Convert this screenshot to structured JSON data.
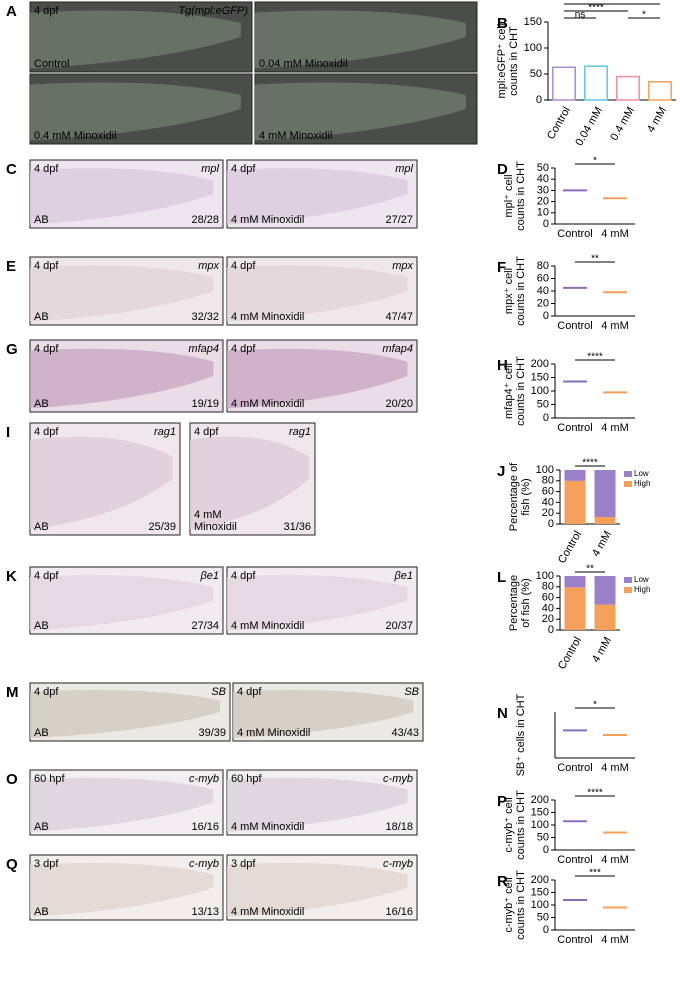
{
  "image_panels": [
    {
      "letter": "A",
      "images": [
        {
          "tl": "4 dpf",
          "tr": "Tg(mpl:eGFP)",
          "bl": "Control"
        },
        {
          "bl": "0.04 mM Minoxidil"
        },
        {
          "bl": "0.4 mM Minoxidil"
        },
        {
          "bl": "4 mM Minoxidil"
        }
      ]
    },
    {
      "letter": "C",
      "images": [
        {
          "tl": "4 dpf",
          "tr": "mpl",
          "bl": "AB",
          "br": "28/28"
        },
        {
          "tl": "4 dpf",
          "tr": "mpl",
          "bl": "4 mM Minoxidil",
          "br": "27/27"
        }
      ]
    },
    {
      "letter": "E",
      "images": [
        {
          "tl": "4 dpf",
          "tr": "mpx",
          "bl": "AB",
          "br": "32/32"
        },
        {
          "tl": "4 dpf",
          "tr": "mpx",
          "bl": "4 mM Minoxidil",
          "br": "47/47"
        }
      ]
    },
    {
      "letter": "G",
      "images": [
        {
          "tl": "4 dpf",
          "tr": "mfap4",
          "bl": "AB",
          "br": "19/19"
        },
        {
          "tl": "4 dpf",
          "tr": "mfap4",
          "bl": "4 mM Minoxidil",
          "br": "20/20"
        }
      ]
    },
    {
      "letter": "I",
      "images": [
        {
          "tl": "4 dpf",
          "tr": "rag1",
          "bl": "AB",
          "br": "25/39"
        },
        {
          "tl": "4 dpf",
          "tr": "rag1",
          "bl": [
            "4 mM",
            "Minoxidil"
          ],
          "br": "31/36"
        }
      ]
    },
    {
      "letter": "K",
      "images": [
        {
          "tl": "4 dpf",
          "tr": "βe1",
          "bl": "AB",
          "br": "27/34"
        },
        {
          "tl": "4 dpf",
          "tr": "βe1",
          "bl": "4 mM Minoxidil",
          "br": "20/37"
        }
      ]
    },
    {
      "letter": "M",
      "images": [
        {
          "tl": "4 dpf",
          "tr": "SB",
          "bl": "AB",
          "br": "39/39"
        },
        {
          "tl": "4 dpf",
          "tr": "SB",
          "bl": "4 mM Minoxidil",
          "br": "43/43"
        }
      ]
    },
    {
      "letter": "O",
      "images": [
        {
          "tl": "60 hpf",
          "tr": "c-myb",
          "bl": "AB",
          "br": "16/16"
        },
        {
          "tl": "60 hpf",
          "tr": "c-myb",
          "bl": "4 mM Minoxidil",
          "br": "18/18"
        }
      ]
    },
    {
      "letter": "Q",
      "images": [
        {
          "tl": "3 dpf",
          "tr": "c-myb",
          "bl": "AB",
          "br": "13/13"
        },
        {
          "tl": "3 dpf",
          "tr": "c-myb",
          "bl": "4 mM Minoxidil",
          "br": "16/16"
        }
      ]
    }
  ],
  "charts": [
    {
      "letter": "B",
      "type": "bar",
      "ylabel": [
        "mpl:eGFP⁺ cell",
        "counts in CHT"
      ],
      "categories": [
        "Control",
        "0.04 mM",
        "0.4 mM",
        "4 mM"
      ],
      "values": [
        63,
        65,
        45,
        35
      ],
      "colors": [
        "#a98bd3",
        "#5cc6e6",
        "#f08ca2",
        "#f5a05a"
      ],
      "ylim": [
        0,
        150
      ],
      "yticks": [
        0,
        50,
        100,
        150
      ],
      "sig": [
        {
          "label": "ns",
          "from": 0,
          "to": 1
        },
        {
          "label": "*",
          "from": 2,
          "to": 3
        },
        {
          "label": "****",
          "from": 0,
          "to": 2
        },
        {
          "label": "****",
          "from": 0,
          "to": 3
        }
      ]
    },
    {
      "letter": "D",
      "type": "dot",
      "ylabel": [
        "mpl⁺ cell",
        "counts in CHT"
      ],
      "categories": [
        "Control",
        "4 mM"
      ],
      "values": [
        30,
        23
      ],
      "colors": [
        "#8a6bbf",
        "#f5a05a"
      ],
      "ylim": [
        0,
        50
      ],
      "yticks": [
        0,
        10,
        20,
        30,
        40,
        50
      ],
      "sig": [
        {
          "label": "*",
          "from": 0,
          "to": 1
        }
      ]
    },
    {
      "letter": "F",
      "type": "dot",
      "ylabel": [
        "mpx⁺ cell",
        "counts in CHT"
      ],
      "categories": [
        "Control",
        "4 mM"
      ],
      "values": [
        45,
        38
      ],
      "colors": [
        "#8a6bbf",
        "#f5a05a"
      ],
      "ylim": [
        0,
        80
      ],
      "yticks": [
        0,
        20,
        40,
        60,
        80
      ],
      "sig": [
        {
          "label": "**",
          "from": 0,
          "to": 1
        }
      ]
    },
    {
      "letter": "H",
      "type": "dot",
      "ylabel": [
        "mfap4⁺ cell",
        "counts in CHT"
      ],
      "categories": [
        "Control",
        "4 mM"
      ],
      "values": [
        135,
        95
      ],
      "colors": [
        "#8a6bbf",
        "#f5a05a"
      ],
      "ylim": [
        0,
        200
      ],
      "yticks": [
        0,
        50,
        100,
        150,
        200
      ],
      "sig": [
        {
          "label": "****",
          "from": 0,
          "to": 1
        }
      ]
    },
    {
      "letter": "J",
      "type": "stacked",
      "ylabel": [
        "Percentage of",
        "fish   (%)"
      ],
      "categories": [
        "Control",
        "4 mM"
      ],
      "series": [
        {
          "name": "High",
          "color": "#f5a05a",
          "values": [
            80,
            13
          ]
        },
        {
          "name": "Low",
          "color": "#9a7fc9",
          "values": [
            20,
            87
          ]
        }
      ],
      "ylim": [
        0,
        100
      ],
      "yticks": [
        0,
        20,
        40,
        60,
        80,
        100
      ],
      "sig": [
        {
          "label": "****",
          "from": 0,
          "to": 1
        }
      ]
    },
    {
      "letter": "L",
      "type": "stacked",
      "ylabel": [
        "Percentage",
        "of fish  (%)"
      ],
      "categories": [
        "Control",
        "4 mM"
      ],
      "series": [
        {
          "name": "High",
          "color": "#f5a05a",
          "values": [
            79,
            47
          ]
        },
        {
          "name": "Low",
          "color": "#9a7fc9",
          "values": [
            21,
            53
          ]
        }
      ],
      "ylim": [
        0,
        100
      ],
      "yticks": [
        0,
        20,
        40,
        60,
        80,
        100
      ],
      "sig": [
        {
          "label": "**",
          "from": 0,
          "to": 1
        }
      ]
    },
    {
      "letter": "N",
      "type": "dot",
      "ylabel": [
        "SB⁺ cells in CHT"
      ],
      "categories": [
        "Control",
        "4 mM"
      ],
      "values": [
        90,
        75
      ],
      "colors": [
        "#8a6bbf",
        "#f5a05a"
      ],
      "ylim": [
        0,
        150
      ],
      "sig": [
        {
          "label": "*",
          "from": 0,
          "to": 1
        }
      ]
    },
    {
      "letter": "P",
      "type": "dot",
      "ylabel": [
        "c-myb⁺ cell",
        "counts in CHT"
      ],
      "categories": [
        "Control",
        "4 mM"
      ],
      "values": [
        115,
        70
      ],
      "colors": [
        "#8a6bbf",
        "#f5a05a"
      ],
      "ylim": [
        0,
        200
      ],
      "yticks": [
        0,
        50,
        100,
        150,
        200
      ],
      "sig": [
        {
          "label": "****",
          "from": 0,
          "to": 1
        }
      ]
    },
    {
      "letter": "R",
      "type": "dot",
      "ylabel": [
        "c-myb⁺ cell",
        "counts in CHT"
      ],
      "categories": [
        "Control",
        "4 mM"
      ],
      "values": [
        120,
        90
      ],
      "colors": [
        "#8a6bbf",
        "#f5a05a"
      ],
      "ylim": [
        0,
        200
      ],
      "yticks": [
        0,
        50,
        100,
        150,
        200
      ],
      "sig": [
        {
          "label": "***",
          "from": 0,
          "to": 1
        }
      ]
    }
  ]
}
